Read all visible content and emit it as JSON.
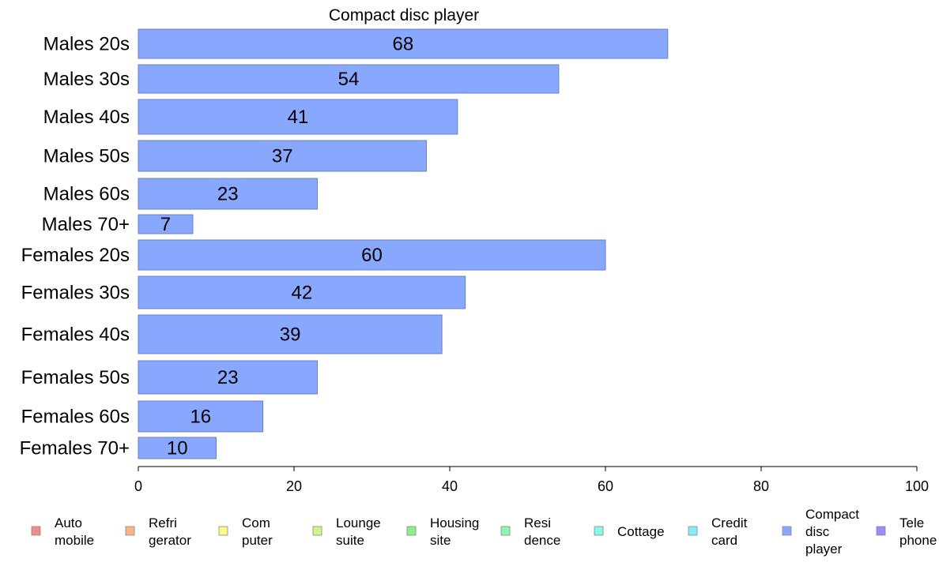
{
  "chart_data": {
    "type": "bar",
    "orientation": "horizontal",
    "title": "Compact disc player",
    "categories": [
      "Males 20s",
      "Males 30s",
      "Males 40s",
      "Males 50s",
      "Males 60s",
      "Males 70+",
      "Females 20s",
      "Females 30s",
      "Females 40s",
      "Females 50s",
      "Females 60s",
      "Females 70+"
    ],
    "values": [
      68,
      54,
      41,
      37,
      23,
      7,
      60,
      42,
      39,
      23,
      16,
      10
    ],
    "value_labels": [
      "68",
      "54",
      "41",
      "37",
      "23",
      "7",
      "60",
      "42",
      "39",
      "23",
      "16",
      "10"
    ],
    "xlim": [
      0,
      100
    ],
    "xticks": [
      0,
      20,
      40,
      60,
      80,
      100
    ],
    "xtick_labels": [
      "0",
      "20",
      "40",
      "60",
      "80",
      "100"
    ],
    "bar_color": "#88a8ff",
    "bar_edge_color": "#6a7fc7",
    "grid": false,
    "legend_position": "bottom",
    "legend": [
      {
        "lines": [
          "Auto",
          "mobile"
        ],
        "color": "#f08b8b"
      },
      {
        "lines": [
          "Refri",
          "gerator"
        ],
        "color": "#f8b487"
      },
      {
        "lines": [
          "Com",
          "puter"
        ],
        "color": "#fbfb87"
      },
      {
        "lines": [
          "Lounge",
          "suite"
        ],
        "color": "#d2f587"
      },
      {
        "lines": [
          "Housing",
          "site"
        ],
        "color": "#8cf08c"
      },
      {
        "lines": [
          "Resi",
          "dence"
        ],
        "color": "#8cf5b4"
      },
      {
        "lines": [
          "Cottage"
        ],
        "color": "#87fbe6"
      },
      {
        "lines": [
          "Credit",
          "card"
        ],
        "color": "#87ecfb"
      },
      {
        "lines": [
          "Compact",
          "disc",
          "player"
        ],
        "color": "#88a8ff"
      },
      {
        "lines": [
          "Tele",
          "phone"
        ],
        "color": "#9b8cff"
      }
    ]
  }
}
